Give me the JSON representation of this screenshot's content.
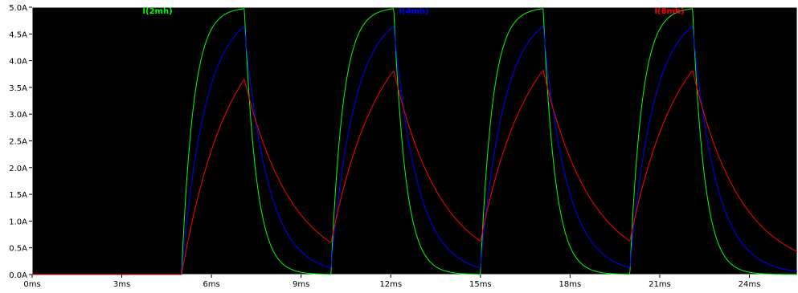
{
  "chart_data": {
    "type": "line",
    "background": "#000000",
    "axis_color": "#ffffff",
    "x": {
      "unit": "ms",
      "range": [
        0,
        25.6
      ],
      "ticks": [
        0,
        3,
        6,
        9,
        12,
        15,
        18,
        21,
        24
      ],
      "tick_labels": [
        "0ms",
        "3ms",
        "6ms",
        "9ms",
        "12ms",
        "15ms",
        "18ms",
        "21ms",
        "24ms"
      ]
    },
    "y": {
      "unit": "A",
      "range": [
        0,
        5.0
      ],
      "ticks": [
        0,
        0.5,
        1.0,
        1.5,
        2.0,
        2.5,
        3.0,
        3.5,
        4.0,
        4.5,
        5.0
      ],
      "tick_labels": [
        "0.0A",
        "0.5A",
        "1.0A",
        "1.5A",
        "2.0A",
        "2.5A",
        "3.0A",
        "3.5A",
        "4.0A",
        "4.5A",
        "5.0A"
      ]
    },
    "pulse": {
      "amplitude": 5.0,
      "on_times": [
        5.0,
        10.0,
        15.0,
        20.0
      ],
      "on_duration": 2.1,
      "end": 25.6
    },
    "series": [
      {
        "name": "I(2mh)",
        "color": "#00ff00",
        "tau_ms": 0.4
      },
      {
        "name": "I(4mh)",
        "color": "#0000ff",
        "tau_ms": 0.8
      },
      {
        "name": "I(8mh)",
        "color": "#ff0000",
        "tau_ms": 1.6
      }
    ],
    "legend_placement": "top"
  }
}
